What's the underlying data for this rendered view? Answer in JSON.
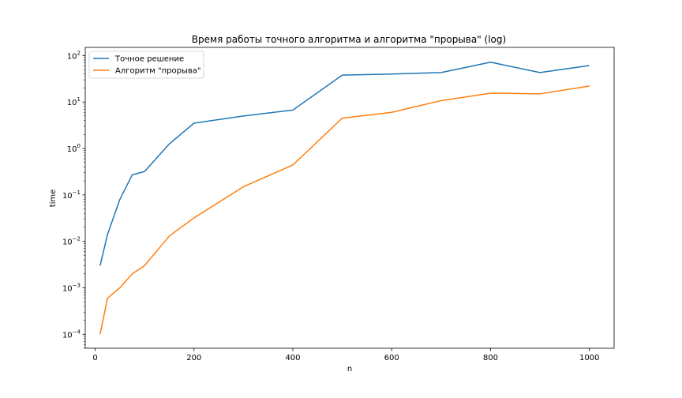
{
  "chart_data": {
    "type": "line",
    "title": "Время работы точного алгоритма и алгоритма \"прорыва\" (log)",
    "xlabel": "n",
    "ylabel": "time",
    "yscale": "log",
    "xlim": [
      -20,
      1050
    ],
    "ylim": [
      5e-05,
      150
    ],
    "xticks": [
      0,
      200,
      400,
      600,
      800,
      1000
    ],
    "yticks": [
      {
        "value": 0.0001,
        "base": "10",
        "exp": "−4"
      },
      {
        "value": 0.001,
        "base": "10",
        "exp": "−3"
      },
      {
        "value": 0.01,
        "base": "10",
        "exp": "−2"
      },
      {
        "value": 0.1,
        "base": "10",
        "exp": "−1"
      },
      {
        "value": 1,
        "base": "10",
        "exp": "0"
      },
      {
        "value": 10,
        "base": "10",
        "exp": "1"
      },
      {
        "value": 100,
        "base": "10",
        "exp": "2"
      }
    ],
    "grid": false,
    "legend_position": "top-left",
    "x": [
      10,
      25,
      50,
      75,
      100,
      150,
      200,
      300,
      400,
      500,
      600,
      700,
      800,
      900,
      1000
    ],
    "series": [
      {
        "name": "Точное решение",
        "color": "#1f77b4",
        "values": [
          0.003,
          0.014,
          0.08,
          0.27,
          0.32,
          1.25,
          3.5,
          5.0,
          6.7,
          38,
          40,
          43,
          72,
          43,
          61
        ]
      },
      {
        "name": "Алгоритм \"прорыва\"",
        "color": "#ff7f0e",
        "values": [
          0.0001,
          0.0006,
          0.001,
          0.002,
          0.003,
          0.013,
          0.032,
          0.15,
          0.44,
          4.5,
          6.0,
          10.7,
          15.5,
          15.0,
          22
        ]
      }
    ]
  }
}
